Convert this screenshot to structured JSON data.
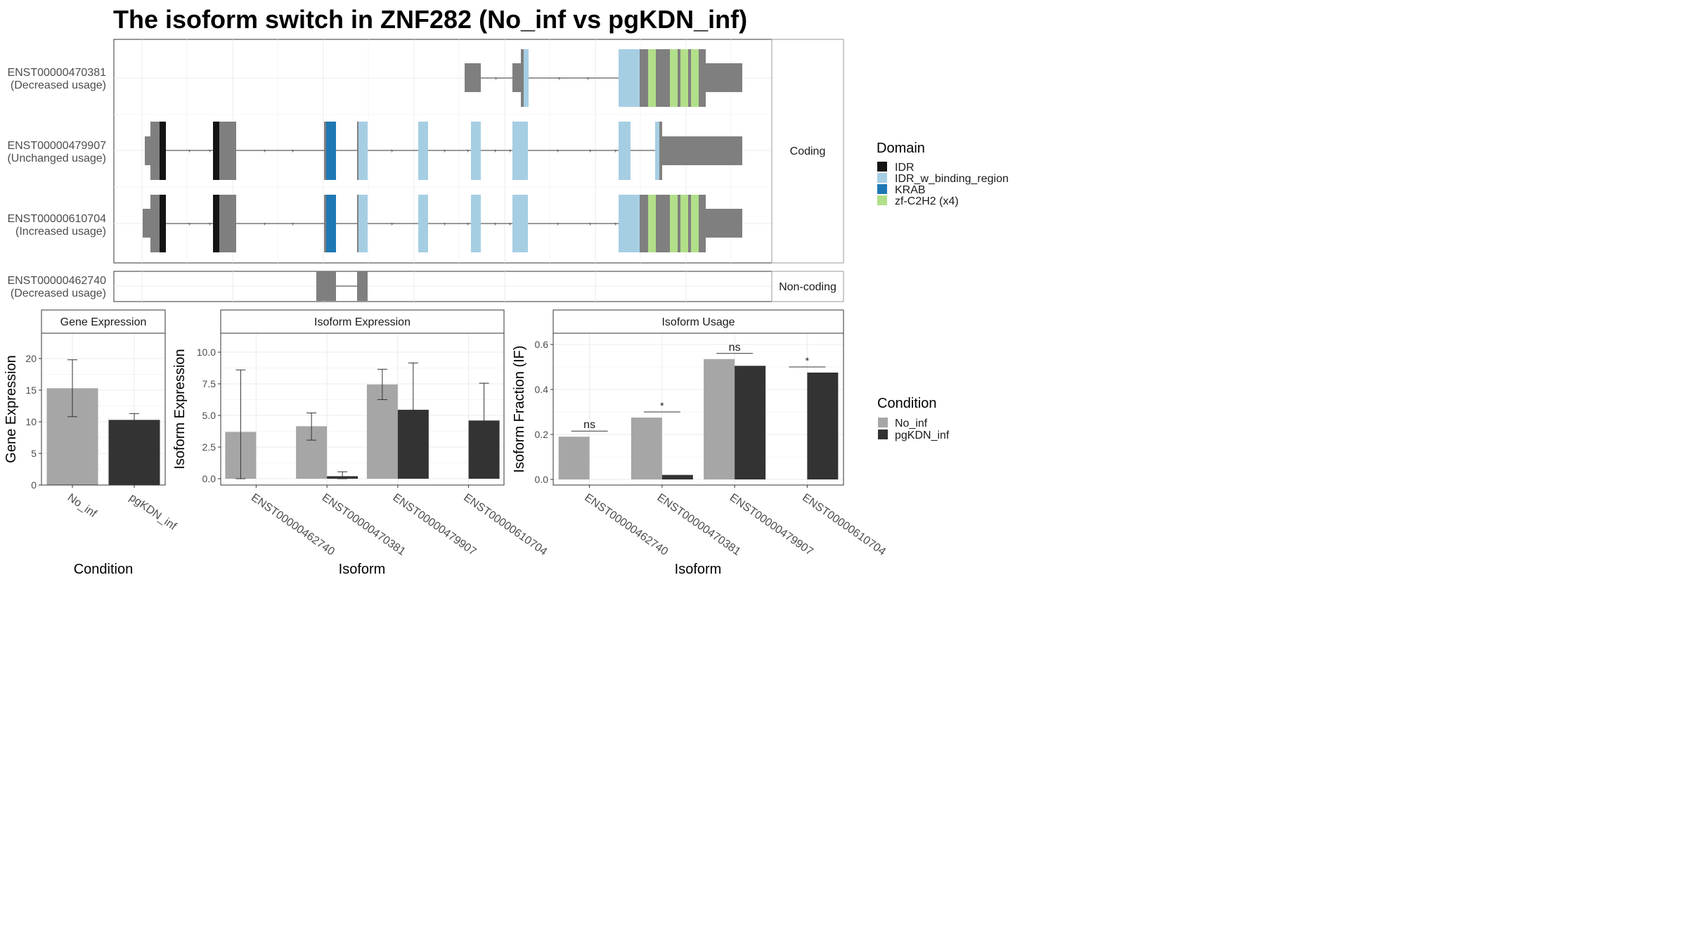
{
  "title": "The isoform switch in ZNF282 (No_inf vs pgKDN_inf)",
  "colors": {
    "exon_grey": "#7f7f7f",
    "intron_line": "#333333",
    "panel_border": "#333333",
    "grid": "#ebebeb",
    "strip_border": "#999999",
    "IDR": "#141414",
    "IDR_w_binding_region": "#a6cee3",
    "KRAB": "#1f78b4",
    "zf-C2H2 (x4)": "#b2df8a",
    "No_inf": "#a6a6a6",
    "pgKDN_inf": "#333333"
  },
  "structure": {
    "strip_coding": "Coding",
    "strip_noncoding": "Non-coding",
    "isoforms": [
      {
        "id": "ENST00000470381",
        "usage": "(Decreased usage)",
        "group": "coding"
      },
      {
        "id": "ENST00000479907",
        "usage": "(Unchanged usage)",
        "group": "coding"
      },
      {
        "id": "ENST00000610704",
        "usage": "(Increased usage)",
        "group": "coding"
      },
      {
        "id": "ENST00000462740",
        "usage": "(Decreased usage)",
        "group": "noncoding"
      }
    ]
  },
  "domain_legend": {
    "title": "Domain",
    "items": [
      "IDR",
      "IDR_w_binding_region",
      "KRAB",
      "zf-C2H2 (x4)"
    ]
  },
  "condition_legend": {
    "title": "Condition",
    "items": [
      "No_inf",
      "pgKDN_inf"
    ]
  },
  "chart_data": [
    {
      "type": "bar",
      "panel_title": "Gene Expression",
      "xlabel": "Condition",
      "ylabel": "Gene Expression",
      "categories": [
        "No_inf",
        "pgKDN_inf"
      ],
      "values": [
        15.3,
        10.3
      ],
      "error_low": [
        10.8,
        9.3
      ],
      "error_high": [
        19.8,
        11.3
      ],
      "ylim": [
        0,
        24
      ],
      "yticks": [
        0,
        5,
        10,
        15,
        20
      ],
      "ytick_labels": [
        "0",
        "5",
        "10",
        "15",
        "20"
      ]
    },
    {
      "type": "bar",
      "panel_title": "Isoform Expression",
      "xlabel": "Isoform",
      "ylabel": "Isoform Expression",
      "categories": [
        "ENST00000462740",
        "ENST00000470381",
        "ENST00000479907",
        "ENST00000610704"
      ],
      "series": [
        {
          "name": "No_inf",
          "values": [
            3.7,
            4.15,
            7.45,
            0.0
          ],
          "error_low": [
            0.0,
            3.05,
            6.25,
            0.0
          ],
          "error_high": [
            8.6,
            5.2,
            8.65,
            0.0
          ]
        },
        {
          "name": "pgKDN_inf",
          "values": [
            0.0,
            0.2,
            5.45,
            4.6
          ],
          "error_low": [
            0.0,
            0.0,
            1.75,
            1.65
          ],
          "error_high": [
            0.0,
            0.55,
            9.15,
            7.55
          ]
        }
      ],
      "ylim": [
        -0.5,
        11.5
      ],
      "yticks": [
        0,
        2.5,
        5,
        7.5,
        10
      ],
      "ytick_labels": [
        "0.0",
        "2.5",
        "5.0",
        "7.5",
        "10.0"
      ]
    },
    {
      "type": "bar",
      "panel_title": "Isoform Usage",
      "xlabel": "Isoform",
      "ylabel": "Isoform Fraction (IF)",
      "categories": [
        "ENST00000462740",
        "ENST00000470381",
        "ENST00000479907",
        "ENST00000610704"
      ],
      "series": [
        {
          "name": "No_inf",
          "values": [
            0.19,
            0.275,
            0.535,
            0.0
          ]
        },
        {
          "name": "pgKDN_inf",
          "values": [
            0.0,
            0.02,
            0.505,
            0.475
          ]
        }
      ],
      "significance": [
        {
          "label": "ns",
          "y": 0.215
        },
        {
          "label": "*",
          "y": 0.3
        },
        {
          "label": "ns",
          "y": 0.56
        },
        {
          "label": "*",
          "y": 0.5
        }
      ],
      "ylim": [
        -0.025,
        0.65
      ],
      "yticks": [
        0.0,
        0.2,
        0.4,
        0.6
      ],
      "ytick_labels": [
        "0.0",
        "0.2",
        "0.4",
        "0.6"
      ]
    }
  ]
}
